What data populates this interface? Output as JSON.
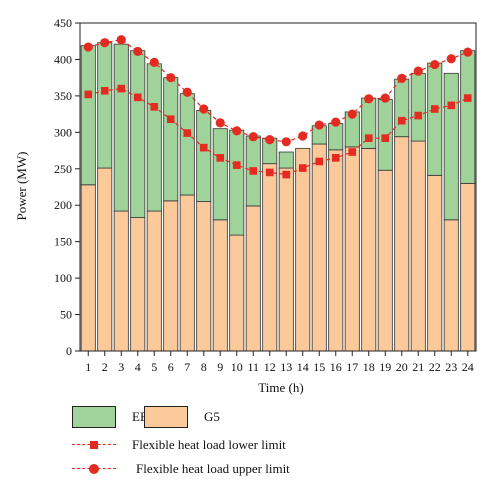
{
  "chart_data": {
    "type": "bar",
    "stacked": true,
    "xlabel": "Time (h)",
    "ylabel": "Power (MW)",
    "ylim": [
      0,
      450
    ],
    "yticks": [
      0,
      50,
      100,
      150,
      200,
      250,
      300,
      350,
      400,
      450
    ],
    "categories": [
      "1",
      "2",
      "3",
      "4",
      "5",
      "6",
      "7",
      "8",
      "9",
      "10",
      "11",
      "12",
      "13",
      "14",
      "15",
      "16",
      "17",
      "18",
      "19",
      "20",
      "21",
      "22",
      "23",
      "24"
    ],
    "series": [
      {
        "name": "G5",
        "type": "bar",
        "color": "#fcc99b",
        "values": [
          228,
          251,
          192,
          183,
          192,
          206,
          214,
          205,
          180,
          159,
          199,
          257,
          251,
          278,
          284,
          276,
          280,
          278,
          248,
          294,
          288,
          241,
          180,
          230
        ]
      },
      {
        "name": "EB",
        "type": "bar",
        "color": "#9fd39a",
        "values": [
          191,
          172,
          229,
          229,
          202,
          169,
          139,
          125,
          125,
          144,
          96,
          35,
          22,
          0,
          25,
          36,
          48,
          69,
          97,
          79,
          93,
          154,
          201,
          182
        ]
      },
      {
        "name": "Flexible heat load lower limit",
        "type": "line",
        "marker": "square",
        "color": "#e32b22",
        "values": [
          352,
          357,
          360,
          348,
          335,
          318,
          299,
          279,
          265,
          255,
          247,
          245,
          242,
          251,
          260,
          265,
          273,
          292,
          292,
          316,
          323,
          332,
          337,
          347
        ]
      },
      {
        "name": "Flexible heat load upper limit",
        "type": "line",
        "marker": "circle",
        "color": "#e32b22",
        "values": [
          417,
          423,
          427,
          411,
          396,
          375,
          355,
          332,
          313,
          302,
          294,
          290,
          287,
          295,
          310,
          314,
          325,
          346,
          347,
          374,
          384,
          393,
          401,
          410
        ]
      }
    ],
    "legend": {
      "position": "bottom",
      "eb_label": "EB",
      "g5_label": "G5",
      "lower_label": "Flexible heat load lower limit",
      "upper_label": "Flexible heat load upper limit"
    }
  }
}
